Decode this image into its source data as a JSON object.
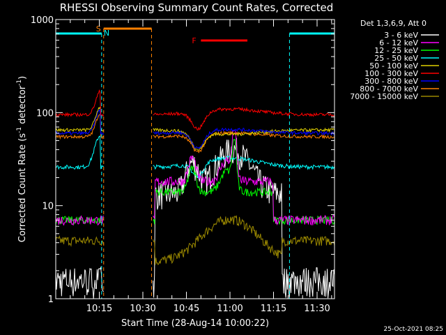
{
  "chart_data": {
    "type": "line",
    "title": "RHESSI Observing Summary Count Rates, Corrected",
    "xlabel": "Start Time (28-Aug-14 10:00:22)",
    "ylabel_main": "Corrected Count Rate (s",
    "ylabel_sup1": "-1",
    "ylabel_mid": " detector",
    "ylabel_sup2": "-1",
    "ylabel_end": ")",
    "ylog": true,
    "ylim": [
      1,
      1000
    ],
    "xlim_minutes": [
      0,
      96
    ],
    "xticks": [
      {
        "label": "10:15",
        "value": 15
      },
      {
        "label": "10:30",
        "value": 30
      },
      {
        "label": "10:45",
        "value": 45
      },
      {
        "label": "11:00",
        "value": 60
      },
      {
        "label": "11:15",
        "value": 75
      },
      {
        "label": "11:30",
        "value": 90
      }
    ],
    "yticks": [
      {
        "label": "1",
        "value": 1
      },
      {
        "label": "10",
        "value": 10
      },
      {
        "label": "100",
        "value": 100
      },
      {
        "label": "1000",
        "value": 1000
      }
    ],
    "legend_header": "Det 1,3,6,9, Att 0",
    "series": [
      {
        "name": "3 - 6 keV",
        "color": "#000000"
      },
      {
        "name": "6 - 12 keV",
        "color": "#ff00ff"
      },
      {
        "name": "12 - 25 keV",
        "color": "#00ff00"
      },
      {
        "name": "25 - 50 keV",
        "color": "#00ffff"
      },
      {
        "name": "50 - 100 keV",
        "color": "#e0d000"
      },
      {
        "name": "100 - 300 keV",
        "color": "#ff0000"
      },
      {
        "name": "300 - 800 keV",
        "color": "#0000ff"
      },
      {
        "name": "800 - 7000 keV",
        "color": "#ff8000"
      },
      {
        "name": "7000 - 15000 keV",
        "color": "#9a8800"
      }
    ],
    "flags": [
      {
        "label": "S",
        "color": "#ff8000",
        "start": 16.5,
        "end": 33
      },
      {
        "label": "N",
        "color": "#00ffff",
        "start": 0,
        "end": 15.8
      },
      {
        "label": "N",
        "color": "#00ffff",
        "start": 80.5,
        "end": 96
      },
      {
        "label": "F",
        "color": "#ff0000",
        "start": 50,
        "end": 66
      }
    ],
    "gaps": [
      [
        16.5,
        33.5
      ]
    ],
    "timestamp": "25-Oct-2021 08:25"
  }
}
